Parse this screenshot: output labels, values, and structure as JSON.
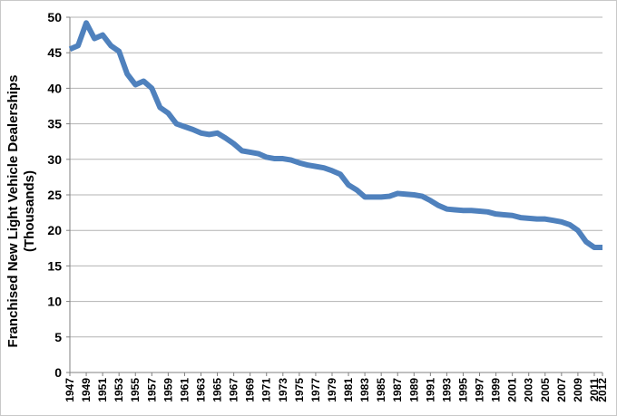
{
  "chart_data": {
    "type": "line",
    "title": "",
    "xlabel": "",
    "ylabel_line1": "Franchised New Light Vehicle  Dealerships",
    "ylabel_line2": "(Thousands)",
    "ylim": [
      0,
      50
    ],
    "yticks": [
      "0",
      "5",
      "10",
      "15",
      "20",
      "25",
      "30",
      "35",
      "40",
      "45",
      "50"
    ],
    "grid": true,
    "legend": "none",
    "line_color": "#4f81bd",
    "xtick_labels": [
      "1947",
      "1949",
      "1951",
      "1953",
      "1955",
      "1957",
      "1959",
      "1961",
      "1963",
      "1965",
      "1967",
      "1969",
      "1971",
      "1973",
      "1975",
      "1977",
      "1979",
      "1981",
      "1983",
      "1985",
      "1987",
      "1989",
      "1991",
      "1993",
      "1995",
      "1997",
      "1999",
      "2001",
      "2003",
      "2005",
      "2007",
      "2009",
      "2011",
      "2012"
    ],
    "series": [
      {
        "x": [
          1947,
          1948,
          1949,
          1950,
          1951,
          1952,
          1953,
          1954,
          1955,
          1956,
          1957,
          1958,
          1959,
          1960,
          1961,
          1962,
          1963,
          1964,
          1965,
          1966,
          1967,
          1968,
          1969,
          1970,
          1971,
          1972,
          1973,
          1974,
          1975,
          1976,
          1977,
          1978,
          1979,
          1980,
          1981,
          1982,
          1983,
          1984,
          1985,
          1986,
          1987,
          1988,
          1989,
          1990,
          1991,
          1992,
          1993,
          1994,
          1995,
          1996,
          1997,
          1998,
          1999,
          2000,
          2001,
          2002,
          2003,
          2004,
          2005,
          2006,
          2007,
          2008,
          2009,
          2010,
          2011,
          2012
        ],
        "values": [
          45.5,
          46.0,
          49.2,
          47.0,
          47.5,
          46.0,
          45.2,
          42.0,
          40.5,
          41.0,
          40.0,
          37.3,
          36.5,
          35.0,
          34.6,
          34.2,
          33.7,
          33.5,
          33.7,
          33.0,
          32.2,
          31.2,
          31.0,
          30.8,
          30.3,
          30.1,
          30.1,
          29.9,
          29.5,
          29.2,
          29.0,
          28.8,
          28.4,
          27.9,
          26.4,
          25.7,
          24.7,
          24.7,
          24.7,
          24.8,
          25.2,
          25.1,
          25.0,
          24.8,
          24.2,
          23.5,
          23.0,
          22.9,
          22.8,
          22.8,
          22.7,
          22.6,
          22.3,
          22.2,
          22.1,
          21.8,
          21.7,
          21.6,
          21.6,
          21.4,
          21.2,
          20.8,
          20.0,
          18.4,
          17.6,
          17.6
        ]
      }
    ]
  }
}
